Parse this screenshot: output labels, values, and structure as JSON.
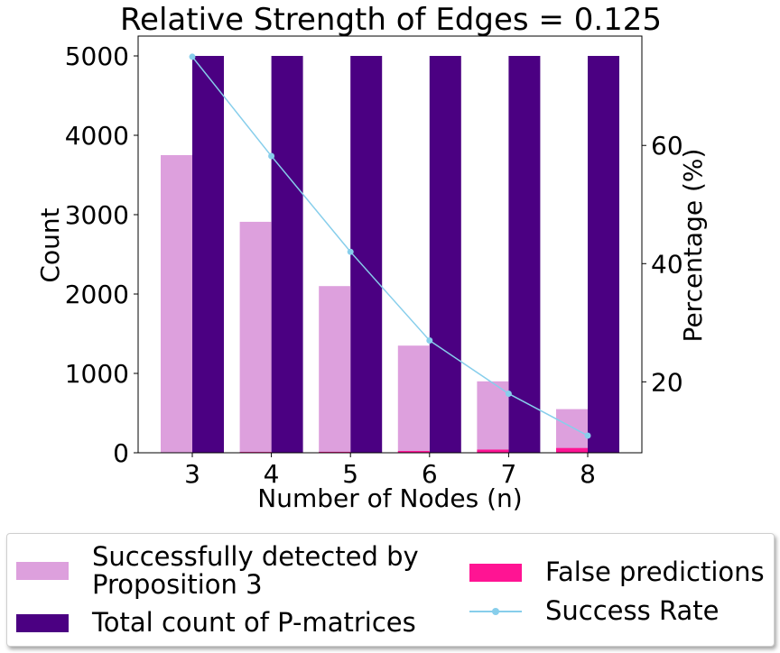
{
  "chart_data": {
    "type": "bar",
    "title": "Relative Strength of Edges = 0.125",
    "xlabel": "Number of Nodes (n)",
    "ylabel": "Count",
    "y2label": "Percentage (%)",
    "categories": [
      "3",
      "4",
      "5",
      "6",
      "7",
      "8"
    ],
    "ylim": [
      0,
      5250
    ],
    "y2lim": [
      8,
      78.5
    ],
    "yticks": [
      0,
      1000,
      2000,
      3000,
      4000,
      5000
    ],
    "y2ticks": [
      20,
      40,
      60
    ],
    "series": [
      {
        "name": "Successfully detected by Proposition 3",
        "kind": "bar",
        "axis": "left",
        "color": "#dda0dd",
        "values": [
          3750,
          2910,
          2100,
          1350,
          900,
          550
        ]
      },
      {
        "name": "Total count of P-matrices",
        "kind": "bar",
        "axis": "left",
        "color": "#4b0082",
        "values": [
          5000,
          5000,
          5000,
          5000,
          5000,
          5000
        ]
      },
      {
        "name": "False predictions",
        "kind": "bar",
        "axis": "left",
        "color": "#ff1493",
        "values": [
          0,
          10,
          12,
          22,
          40,
          60
        ]
      },
      {
        "name": "Success Rate",
        "kind": "line",
        "axis": "right",
        "color": "#87ceeb",
        "values": [
          75,
          58.2,
          42,
          27,
          18,
          10.9
        ]
      }
    ],
    "legend": {
      "placement": "below",
      "entries": [
        {
          "label_line1": "Successfully detected by",
          "label_line2": "Proposition 3",
          "kind": "bar",
          "color": "#dda0dd"
        },
        {
          "label": "Total count of P-matrices",
          "kind": "bar",
          "color": "#4b0082"
        },
        {
          "label": "False predictions",
          "kind": "bar",
          "color": "#ff1493"
        },
        {
          "label": "Success Rate",
          "kind": "line",
          "color": "#87ceeb"
        }
      ]
    }
  }
}
